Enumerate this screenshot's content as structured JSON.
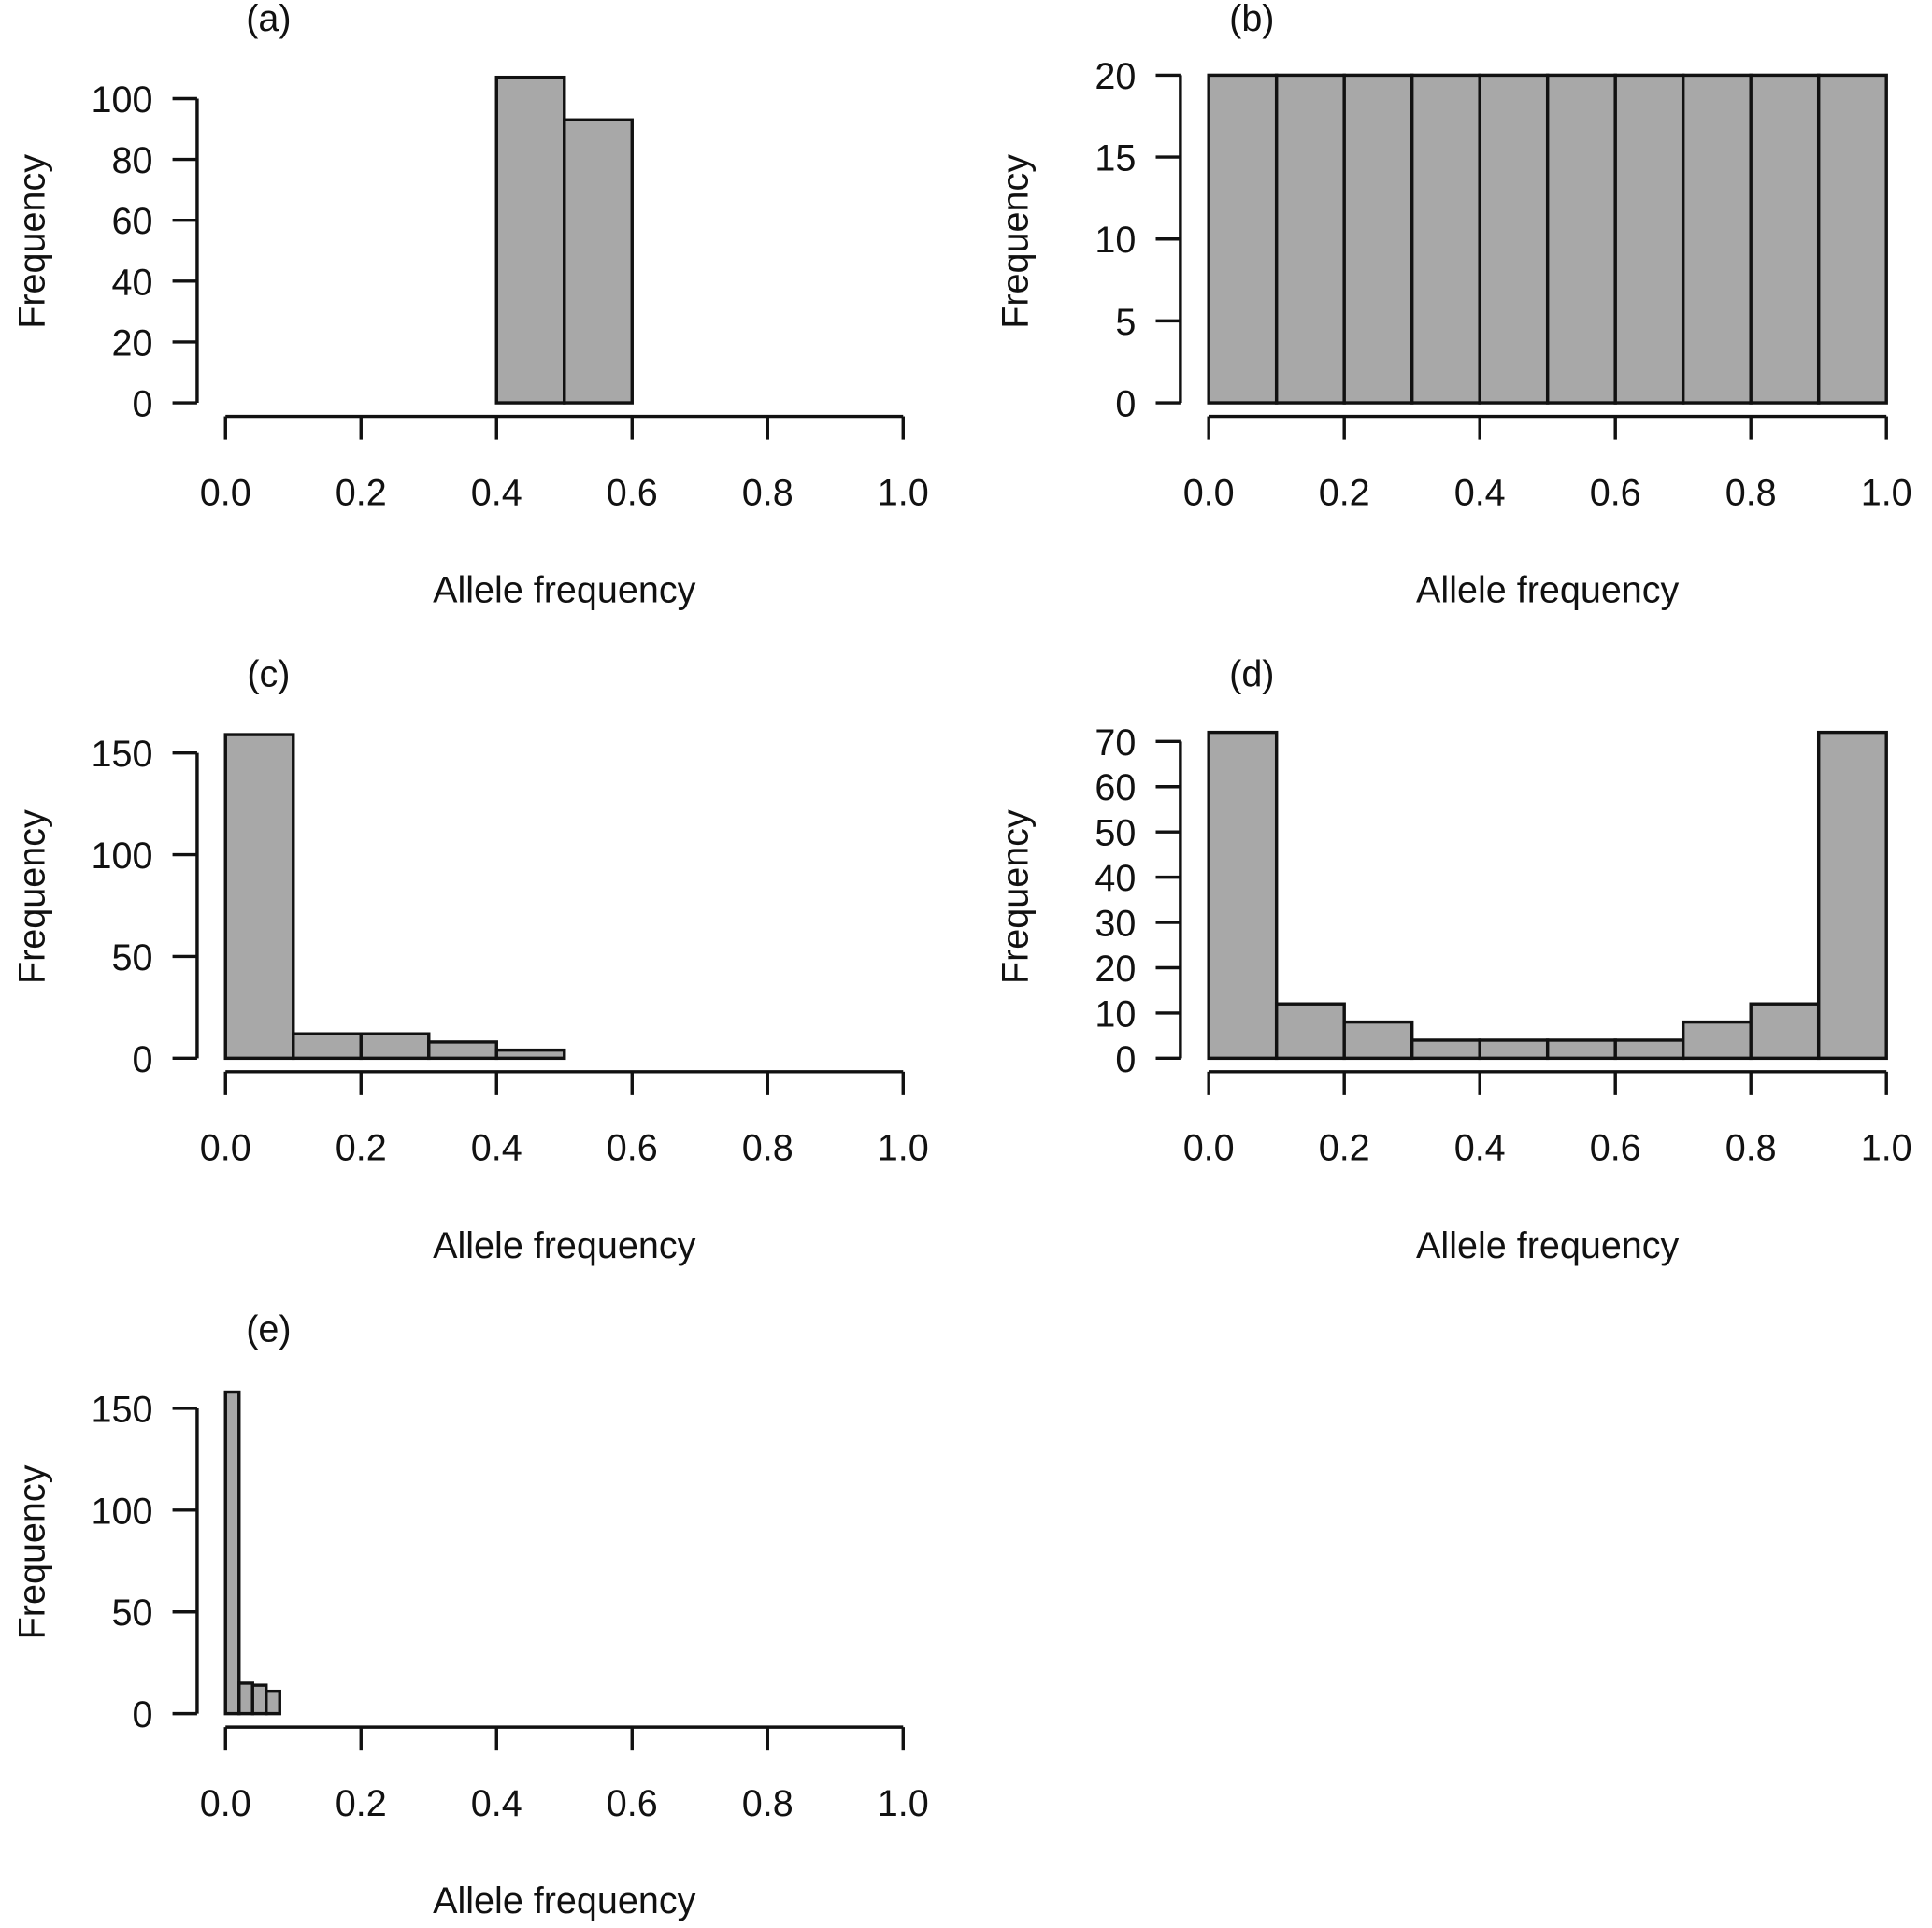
{
  "chart_data": [
    {
      "type": "bar",
      "panel_label": "(a)",
      "xlabel": "Allele frequency",
      "ylabel": "Frequency",
      "xlim": [
        0,
        1
      ],
      "ylim": [
        0,
        107.7
      ],
      "xticks": [
        "0.0",
        "0.2",
        "0.4",
        "0.6",
        "0.8",
        "1.0"
      ],
      "yticks": [
        0,
        20,
        40,
        60,
        80,
        100
      ],
      "bins": [
        [
          0.4,
          0.5
        ],
        [
          0.5,
          0.6
        ]
      ],
      "values": [
        107,
        93
      ]
    },
    {
      "type": "bar",
      "panel_label": "(b)",
      "xlabel": "Allele frequency",
      "ylabel": "Frequency",
      "xlim": [
        0,
        1
      ],
      "ylim": [
        0,
        20
      ],
      "xticks": [
        "0.0",
        "0.2",
        "0.4",
        "0.6",
        "0.8",
        "1.0"
      ],
      "yticks": [
        0,
        5,
        10,
        15,
        20
      ],
      "bins": [
        [
          0,
          0.1
        ],
        [
          0.1,
          0.2
        ],
        [
          0.2,
          0.3
        ],
        [
          0.3,
          0.4
        ],
        [
          0.4,
          0.5
        ],
        [
          0.5,
          0.6
        ],
        [
          0.6,
          0.7
        ],
        [
          0.7,
          0.8
        ],
        [
          0.8,
          0.9
        ],
        [
          0.9,
          1.0
        ]
      ],
      "values": [
        20,
        20,
        20,
        20,
        20,
        20,
        20,
        20,
        20,
        20
      ]
    },
    {
      "type": "bar",
      "panel_label": "(c)",
      "xlabel": "Allele frequency",
      "ylabel": "Frequency",
      "xlim": [
        0,
        1
      ],
      "ylim": [
        0,
        161
      ],
      "xticks": [
        "0.0",
        "0.2",
        "0.4",
        "0.6",
        "0.8",
        "1.0"
      ],
      "yticks": [
        0,
        50,
        100,
        150
      ],
      "bins": [
        [
          0,
          0.1
        ],
        [
          0.1,
          0.2
        ],
        [
          0.2,
          0.3
        ],
        [
          0.3,
          0.4
        ],
        [
          0.4,
          0.5
        ]
      ],
      "values": [
        159,
        12,
        12,
        8,
        4
      ]
    },
    {
      "type": "bar",
      "panel_label": "(d)",
      "xlabel": "Allele frequency",
      "ylabel": "Frequency",
      "xlim": [
        0,
        1
      ],
      "ylim": [
        0,
        72.4
      ],
      "xticks": [
        "0.0",
        "0.2",
        "0.4",
        "0.6",
        "0.8",
        "1.0"
      ],
      "yticks": [
        0,
        10,
        20,
        30,
        40,
        50,
        60,
        70
      ],
      "bins": [
        [
          0,
          0.1
        ],
        [
          0.1,
          0.2
        ],
        [
          0.2,
          0.3
        ],
        [
          0.3,
          0.4
        ],
        [
          0.4,
          0.5
        ],
        [
          0.5,
          0.6
        ],
        [
          0.6,
          0.7
        ],
        [
          0.7,
          0.8
        ],
        [
          0.8,
          0.9
        ],
        [
          0.9,
          1.0
        ]
      ],
      "values": [
        72,
        12,
        8,
        4,
        4,
        4,
        4,
        8,
        12,
        72
      ]
    },
    {
      "type": "bar",
      "panel_label": "(e)",
      "xlabel": "Allele frequency",
      "ylabel": "Frequency",
      "xlim": [
        0,
        1
      ],
      "ylim": [
        0,
        161
      ],
      "xticks": [
        "0.0",
        "0.2",
        "0.4",
        "0.6",
        "0.8",
        "1.0"
      ],
      "yticks": [
        0,
        50,
        100,
        150
      ],
      "bins": [
        [
          0,
          0.02
        ],
        [
          0.02,
          0.04
        ],
        [
          0.04,
          0.06
        ],
        [
          0.06,
          0.08
        ]
      ],
      "values": [
        158,
        15,
        14,
        11
      ]
    }
  ]
}
